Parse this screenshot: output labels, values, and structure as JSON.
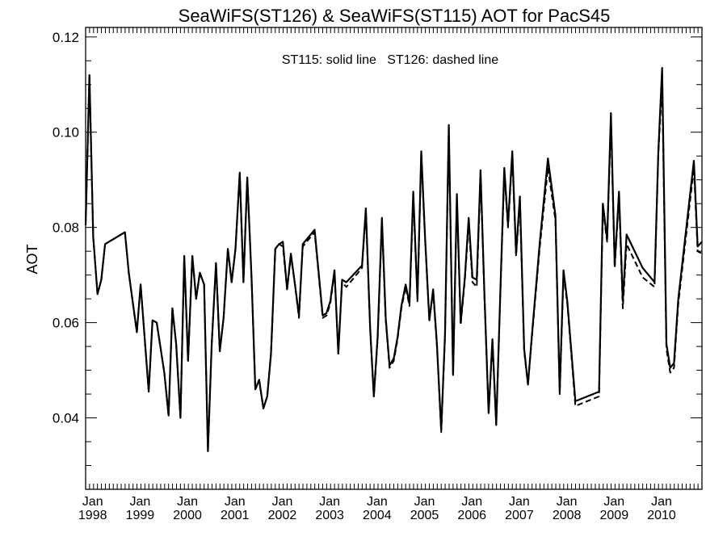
{
  "chart_data": {
    "type": "line",
    "title": "SeaWiFS(ST126) & SeaWiFS(ST115)  AOT for PacS45",
    "ylabel": "AOT",
    "xlabel": "",
    "annotation": "ST115: solid line   ST126: dashed line",
    "ylim": [
      0.025,
      0.122
    ],
    "xlim": [
      1997.92,
      2010.92
    ],
    "yticks": [
      "0.04",
      "0.06",
      "0.08",
      "0.10",
      "0.12"
    ],
    "ytick_values": [
      0.04,
      0.06,
      0.08,
      0.1,
      0.12
    ],
    "xticks": [
      {
        "month": "Jan",
        "year": "1998",
        "x": 1998.0
      },
      {
        "month": "Jan",
        "year": "1999",
        "x": 1999.0
      },
      {
        "month": "Jan",
        "year": "2000",
        "x": 2000.0
      },
      {
        "month": "Jan",
        "year": "2001",
        "x": 2001.0
      },
      {
        "month": "Jan",
        "year": "2002",
        "x": 2002.0
      },
      {
        "month": "Jan",
        "year": "2003",
        "x": 2003.0
      },
      {
        "month": "Jan",
        "year": "2004",
        "x": 2004.0
      },
      {
        "month": "Jan",
        "year": "2005",
        "x": 2005.0
      },
      {
        "month": "Jan",
        "year": "2006",
        "x": 2006.0
      },
      {
        "month": "Jan",
        "year": "2007",
        "x": 2007.0
      },
      {
        "month": "Jan",
        "year": "2008",
        "x": 2008.0
      },
      {
        "month": "Jan",
        "year": "2009",
        "x": 2009.0
      },
      {
        "month": "Jan",
        "year": "2010",
        "x": 2010.0
      }
    ],
    "grid": false,
    "series": [
      {
        "name": "ST115",
        "style": "solid",
        "color": "#000000",
        "points": [
          [
            1997.92,
            0.0805
          ],
          [
            1998.0,
            0.112
          ],
          [
            1998.08,
            0.078
          ],
          [
            1998.17,
            0.066
          ],
          [
            1998.25,
            0.069
          ],
          [
            1998.33,
            0.0765
          ],
          [
            1998.75,
            0.079
          ],
          [
            1998.83,
            0.0705
          ],
          [
            1999.0,
            0.058
          ],
          [
            1999.08,
            0.068
          ],
          [
            1999.25,
            0.0455
          ],
          [
            1999.33,
            0.0605
          ],
          [
            1999.42,
            0.06
          ],
          [
            1999.58,
            0.0495
          ],
          [
            1999.67,
            0.0405
          ],
          [
            1999.75,
            0.063
          ],
          [
            1999.83,
            0.0555
          ],
          [
            1999.92,
            0.04
          ],
          [
            2000.0,
            0.074
          ],
          [
            2000.08,
            0.052
          ],
          [
            2000.17,
            0.074
          ],
          [
            2000.25,
            0.065
          ],
          [
            2000.33,
            0.0705
          ],
          [
            2000.42,
            0.068
          ],
          [
            2000.5,
            0.033
          ],
          [
            2000.58,
            0.0555
          ],
          [
            2000.67,
            0.0725
          ],
          [
            2000.75,
            0.054
          ],
          [
            2000.83,
            0.061
          ],
          [
            2000.92,
            0.0755
          ],
          [
            2001.0,
            0.0685
          ],
          [
            2001.08,
            0.0755
          ],
          [
            2001.17,
            0.0915
          ],
          [
            2001.25,
            0.0685
          ],
          [
            2001.33,
            0.0905
          ],
          [
            2001.42,
            0.0695
          ],
          [
            2001.5,
            0.046
          ],
          [
            2001.58,
            0.048
          ],
          [
            2001.67,
            0.042
          ],
          [
            2001.75,
            0.0445
          ],
          [
            2001.83,
            0.0535
          ],
          [
            2001.92,
            0.0755
          ],
          [
            2002.0,
            0.0765
          ],
          [
            2002.08,
            0.077
          ],
          [
            2002.17,
            0.067
          ],
          [
            2002.25,
            0.0745
          ],
          [
            2002.33,
            0.0685
          ],
          [
            2002.42,
            0.0615
          ],
          [
            2002.5,
            0.0765
          ],
          [
            2002.75,
            0.0795
          ],
          [
            2002.92,
            0.0615
          ],
          [
            2003.0,
            0.062
          ],
          [
            2003.08,
            0.0645
          ],
          [
            2003.17,
            0.071
          ],
          [
            2003.25,
            0.0535
          ],
          [
            2003.33,
            0.069
          ],
          [
            2003.42,
            0.0685
          ],
          [
            2003.75,
            0.072
          ],
          [
            2003.83,
            0.084
          ],
          [
            2003.92,
            0.059
          ],
          [
            2004.0,
            0.0445
          ],
          [
            2004.08,
            0.057
          ],
          [
            2004.17,
            0.082
          ],
          [
            2004.25,
            0.061
          ],
          [
            2004.33,
            0.051
          ],
          [
            2004.42,
            0.0525
          ],
          [
            2004.5,
            0.057
          ],
          [
            2004.58,
            0.0635
          ],
          [
            2004.67,
            0.068
          ],
          [
            2004.75,
            0.064
          ],
          [
            2004.83,
            0.0875
          ],
          [
            2004.92,
            0.065
          ],
          [
            2005.0,
            0.096
          ],
          [
            2005.08,
            0.078
          ],
          [
            2005.17,
            0.0605
          ],
          [
            2005.25,
            0.067
          ],
          [
            2005.33,
            0.0555
          ],
          [
            2005.42,
            0.0375
          ],
          [
            2005.5,
            0.0575
          ],
          [
            2005.58,
            0.1015
          ],
          [
            2005.67,
            0.049
          ],
          [
            2005.75,
            0.087
          ],
          [
            2005.83,
            0.06
          ],
          [
            2005.92,
            0.0695
          ],
          [
            2006.0,
            0.082
          ],
          [
            2006.08,
            0.0695
          ],
          [
            2006.17,
            0.069
          ],
          [
            2006.25,
            0.092
          ],
          [
            2006.33,
            0.0665
          ],
          [
            2006.42,
            0.041
          ],
          [
            2006.5,
            0.0565
          ],
          [
            2006.58,
            0.0385
          ],
          [
            2006.67,
            0.0675
          ],
          [
            2006.75,
            0.0925
          ],
          [
            2006.83,
            0.0805
          ],
          [
            2006.92,
            0.096
          ],
          [
            2007.0,
            0.0745
          ],
          [
            2007.08,
            0.0865
          ],
          [
            2007.17,
            0.0545
          ],
          [
            2007.25,
            0.047
          ],
          [
            2007.33,
            0.057
          ],
          [
            2007.5,
            0.077
          ],
          [
            2007.67,
            0.0945
          ],
          [
            2007.83,
            0.0825
          ],
          [
            2007.92,
            0.0455
          ],
          [
            2008.0,
            0.071
          ],
          [
            2008.08,
            0.0645
          ],
          [
            2008.25,
            0.0435
          ],
          [
            2008.75,
            0.0455
          ],
          [
            2008.83,
            0.085
          ],
          [
            2008.92,
            0.0775
          ],
          [
            2009.0,
            0.104
          ],
          [
            2009.08,
            0.072
          ],
          [
            2009.17,
            0.0875
          ],
          [
            2009.25,
            0.0645
          ],
          [
            2009.33,
            0.0785
          ],
          [
            2009.67,
            0.0715
          ],
          [
            2009.92,
            0.0685
          ],
          [
            2010.0,
            0.096
          ],
          [
            2010.08,
            0.1135
          ],
          [
            2010.17,
            0.0555
          ],
          [
            2010.25,
            0.0505
          ],
          [
            2010.33,
            0.0515
          ],
          [
            2010.42,
            0.065
          ],
          [
            2010.75,
            0.094
          ],
          [
            2010.83,
            0.076
          ],
          [
            2010.92,
            0.077
          ]
        ]
      },
      {
        "name": "ST126",
        "style": "dashed",
        "color": "#000000",
        "points": [
          [
            1997.92,
            0.0805
          ],
          [
            1998.0,
            0.112
          ],
          [
            1998.08,
            0.078
          ],
          [
            1998.17,
            0.066
          ],
          [
            1998.25,
            0.069
          ],
          [
            1998.33,
            0.0765
          ],
          [
            1998.75,
            0.079
          ],
          [
            1998.83,
            0.0705
          ],
          [
            1999.0,
            0.058
          ],
          [
            1999.08,
            0.068
          ],
          [
            1999.25,
            0.0455
          ],
          [
            1999.33,
            0.0605
          ],
          [
            1999.42,
            0.06
          ],
          [
            1999.58,
            0.0495
          ],
          [
            1999.67,
            0.0405
          ],
          [
            1999.75,
            0.063
          ],
          [
            1999.83,
            0.0555
          ],
          [
            1999.92,
            0.04
          ],
          [
            2000.0,
            0.074
          ],
          [
            2000.08,
            0.052
          ],
          [
            2000.17,
            0.074
          ],
          [
            2000.25,
            0.065
          ],
          [
            2000.33,
            0.0705
          ],
          [
            2000.42,
            0.068
          ],
          [
            2000.5,
            0.033
          ],
          [
            2000.58,
            0.0555
          ],
          [
            2000.67,
            0.0725
          ],
          [
            2000.75,
            0.054
          ],
          [
            2000.83,
            0.061
          ],
          [
            2000.92,
            0.0755
          ],
          [
            2001.0,
            0.0685
          ],
          [
            2001.08,
            0.0755
          ],
          [
            2001.17,
            0.0915
          ],
          [
            2001.25,
            0.0685
          ],
          [
            2001.33,
            0.0905
          ],
          [
            2001.42,
            0.0695
          ],
          [
            2001.5,
            0.046
          ],
          [
            2001.58,
            0.048
          ],
          [
            2001.67,
            0.042
          ],
          [
            2001.75,
            0.0445
          ],
          [
            2001.83,
            0.0535
          ],
          [
            2001.92,
            0.0755
          ],
          [
            2002.0,
            0.0765
          ],
          [
            2002.08,
            0.076
          ],
          [
            2002.17,
            0.067
          ],
          [
            2002.25,
            0.074
          ],
          [
            2002.33,
            0.0685
          ],
          [
            2002.42,
            0.061
          ],
          [
            2002.5,
            0.076
          ],
          [
            2002.75,
            0.079
          ],
          [
            2002.92,
            0.061
          ],
          [
            2003.0,
            0.0615
          ],
          [
            2003.08,
            0.064
          ],
          [
            2003.17,
            0.0705
          ],
          [
            2003.25,
            0.0535
          ],
          [
            2003.33,
            0.0685
          ],
          [
            2003.42,
            0.0675
          ],
          [
            2003.75,
            0.0715
          ],
          [
            2003.83,
            0.0835
          ],
          [
            2003.92,
            0.0585
          ],
          [
            2004.0,
            0.0445
          ],
          [
            2004.08,
            0.0565
          ],
          [
            2004.17,
            0.081
          ],
          [
            2004.25,
            0.0605
          ],
          [
            2004.33,
            0.0505
          ],
          [
            2004.42,
            0.052
          ],
          [
            2004.5,
            0.0565
          ],
          [
            2004.58,
            0.063
          ],
          [
            2004.67,
            0.0675
          ],
          [
            2004.75,
            0.0635
          ],
          [
            2004.83,
            0.0865
          ],
          [
            2004.92,
            0.0645
          ],
          [
            2005.0,
            0.095
          ],
          [
            2005.08,
            0.0775
          ],
          [
            2005.17,
            0.0605
          ],
          [
            2005.25,
            0.0665
          ],
          [
            2005.33,
            0.055
          ],
          [
            2005.42,
            0.037
          ],
          [
            2005.5,
            0.057
          ],
          [
            2005.58,
            0.1005
          ],
          [
            2005.67,
            0.049
          ],
          [
            2005.75,
            0.086
          ],
          [
            2005.83,
            0.0595
          ],
          [
            2005.92,
            0.069
          ],
          [
            2006.0,
            0.081
          ],
          [
            2006.08,
            0.0685
          ],
          [
            2006.17,
            0.0675
          ],
          [
            2006.25,
            0.091
          ],
          [
            2006.33,
            0.066
          ],
          [
            2006.42,
            0.041
          ],
          [
            2006.5,
            0.056
          ],
          [
            2006.58,
            0.0385
          ],
          [
            2006.67,
            0.067
          ],
          [
            2006.75,
            0.0915
          ],
          [
            2006.83,
            0.08
          ],
          [
            2006.92,
            0.095
          ],
          [
            2007.0,
            0.074
          ],
          [
            2007.08,
            0.0855
          ],
          [
            2007.17,
            0.054
          ],
          [
            2007.25,
            0.047
          ],
          [
            2007.33,
            0.0565
          ],
          [
            2007.5,
            0.076
          ],
          [
            2007.67,
            0.0925
          ],
          [
            2007.83,
            0.0815
          ],
          [
            2007.92,
            0.045
          ],
          [
            2008.0,
            0.07
          ],
          [
            2008.08,
            0.064
          ],
          [
            2008.25,
            0.0425
          ],
          [
            2008.75,
            0.0445
          ],
          [
            2008.83,
            0.084
          ],
          [
            2008.92,
            0.077
          ],
          [
            2009.0,
            0.1025
          ],
          [
            2009.08,
            0.0715
          ],
          [
            2009.17,
            0.0865
          ],
          [
            2009.25,
            0.063
          ],
          [
            2009.33,
            0.0765
          ],
          [
            2009.67,
            0.0695
          ],
          [
            2009.92,
            0.0675
          ],
          [
            2010.0,
            0.0955
          ],
          [
            2010.08,
            0.1105
          ],
          [
            2010.17,
            0.0545
          ],
          [
            2010.25,
            0.0495
          ],
          [
            2010.33,
            0.0505
          ],
          [
            2010.42,
            0.064
          ],
          [
            2010.75,
            0.0925
          ],
          [
            2010.83,
            0.075
          ],
          [
            2010.92,
            0.0745
          ]
        ]
      }
    ]
  }
}
